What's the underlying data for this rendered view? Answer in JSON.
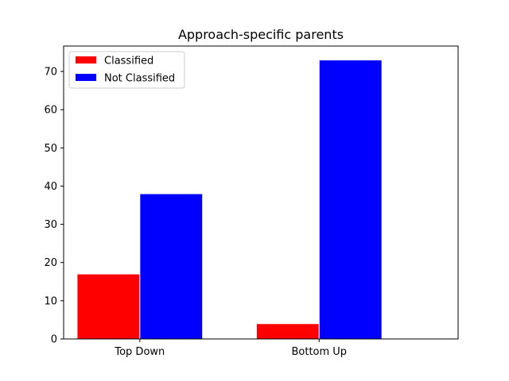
{
  "chart_data": {
    "type": "bar",
    "title": "Approach-specific parents",
    "xlabel": "",
    "ylabel": "",
    "categories": [
      "Top Down",
      "Bottom Up"
    ],
    "series": [
      {
        "name": "Classified",
        "values": [
          17,
          4
        ],
        "color": "#ff0000"
      },
      {
        "name": "Not Classified",
        "values": [
          38,
          73
        ],
        "color": "#0000ff"
      }
    ],
    "ylim": [
      0,
      76.65
    ],
    "yticks": [
      0,
      10,
      20,
      30,
      40,
      50,
      60,
      70
    ],
    "grid": false,
    "legend_position": "top-left",
    "bar_edge_color": "#ffffff"
  }
}
